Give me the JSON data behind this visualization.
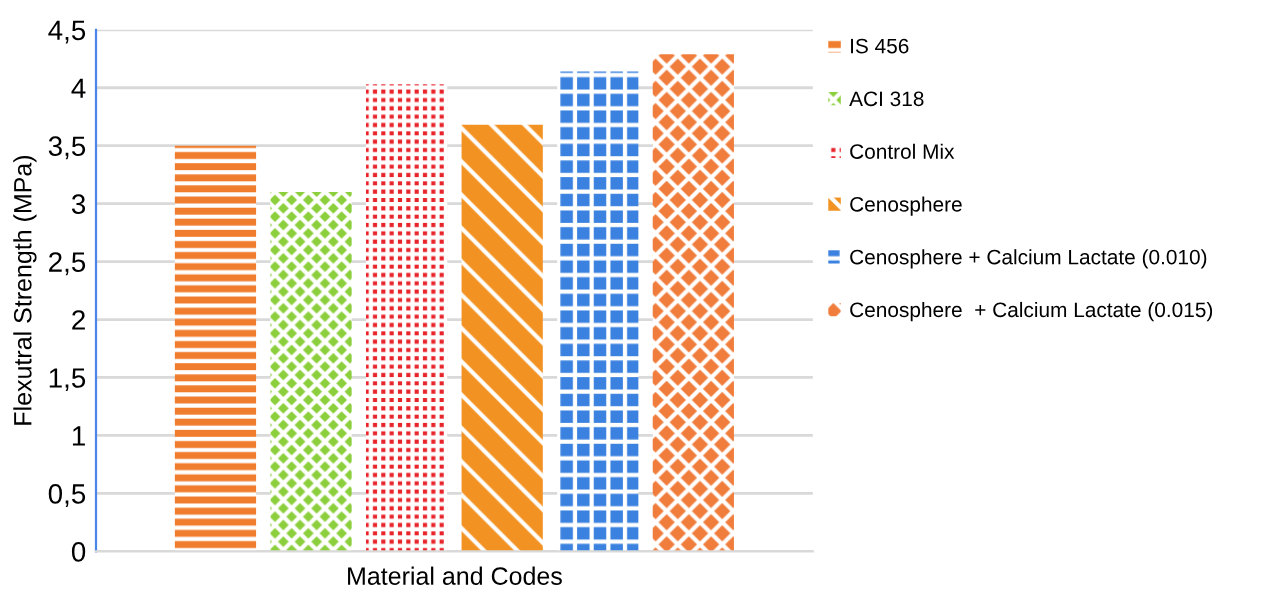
{
  "chart_data": {
    "type": "bar",
    "xlabel": "Material and Codes",
    "ylabel": "Flexutral Strength (MPa)",
    "categories": [
      null
    ],
    "series": [
      {
        "name": "IS 456",
        "color": "#f07d2e",
        "values": [
          3.5
        ]
      },
      {
        "name": "ACI 318",
        "color": "#8ccf3c",
        "values": [
          3.1
        ]
      },
      {
        "name": "Control Mix",
        "color": "#e8232a",
        "values": [
          4.03
        ]
      },
      {
        "name": "Cenosphere",
        "color": "#f29222",
        "values": [
          3.68
        ]
      },
      {
        "name": "Cenosphere + Calcium Lactate (0.010)",
        "color": "#3b82e0",
        "values": [
          4.14
        ]
      },
      {
        "name": "Cenosphere  + Calcium Lactate (0.015)",
        "color": "#f07d3c",
        "values": [
          4.29
        ]
      }
    ],
    "ylim": [
      0,
      4.5
    ],
    "yticks": [
      0,
      {
        "value": 0.5,
        "label": "0,5"
      },
      1,
      {
        "value": 1.5,
        "label": "1,5"
      },
      2,
      {
        "value": 2.5,
        "label": "2,5"
      },
      3,
      {
        "value": 3.5,
        "label": "3,5"
      },
      4,
      {
        "value": 4.5,
        "label": "4,5"
      }
    ],
    "grid": "y",
    "legend": "right"
  }
}
